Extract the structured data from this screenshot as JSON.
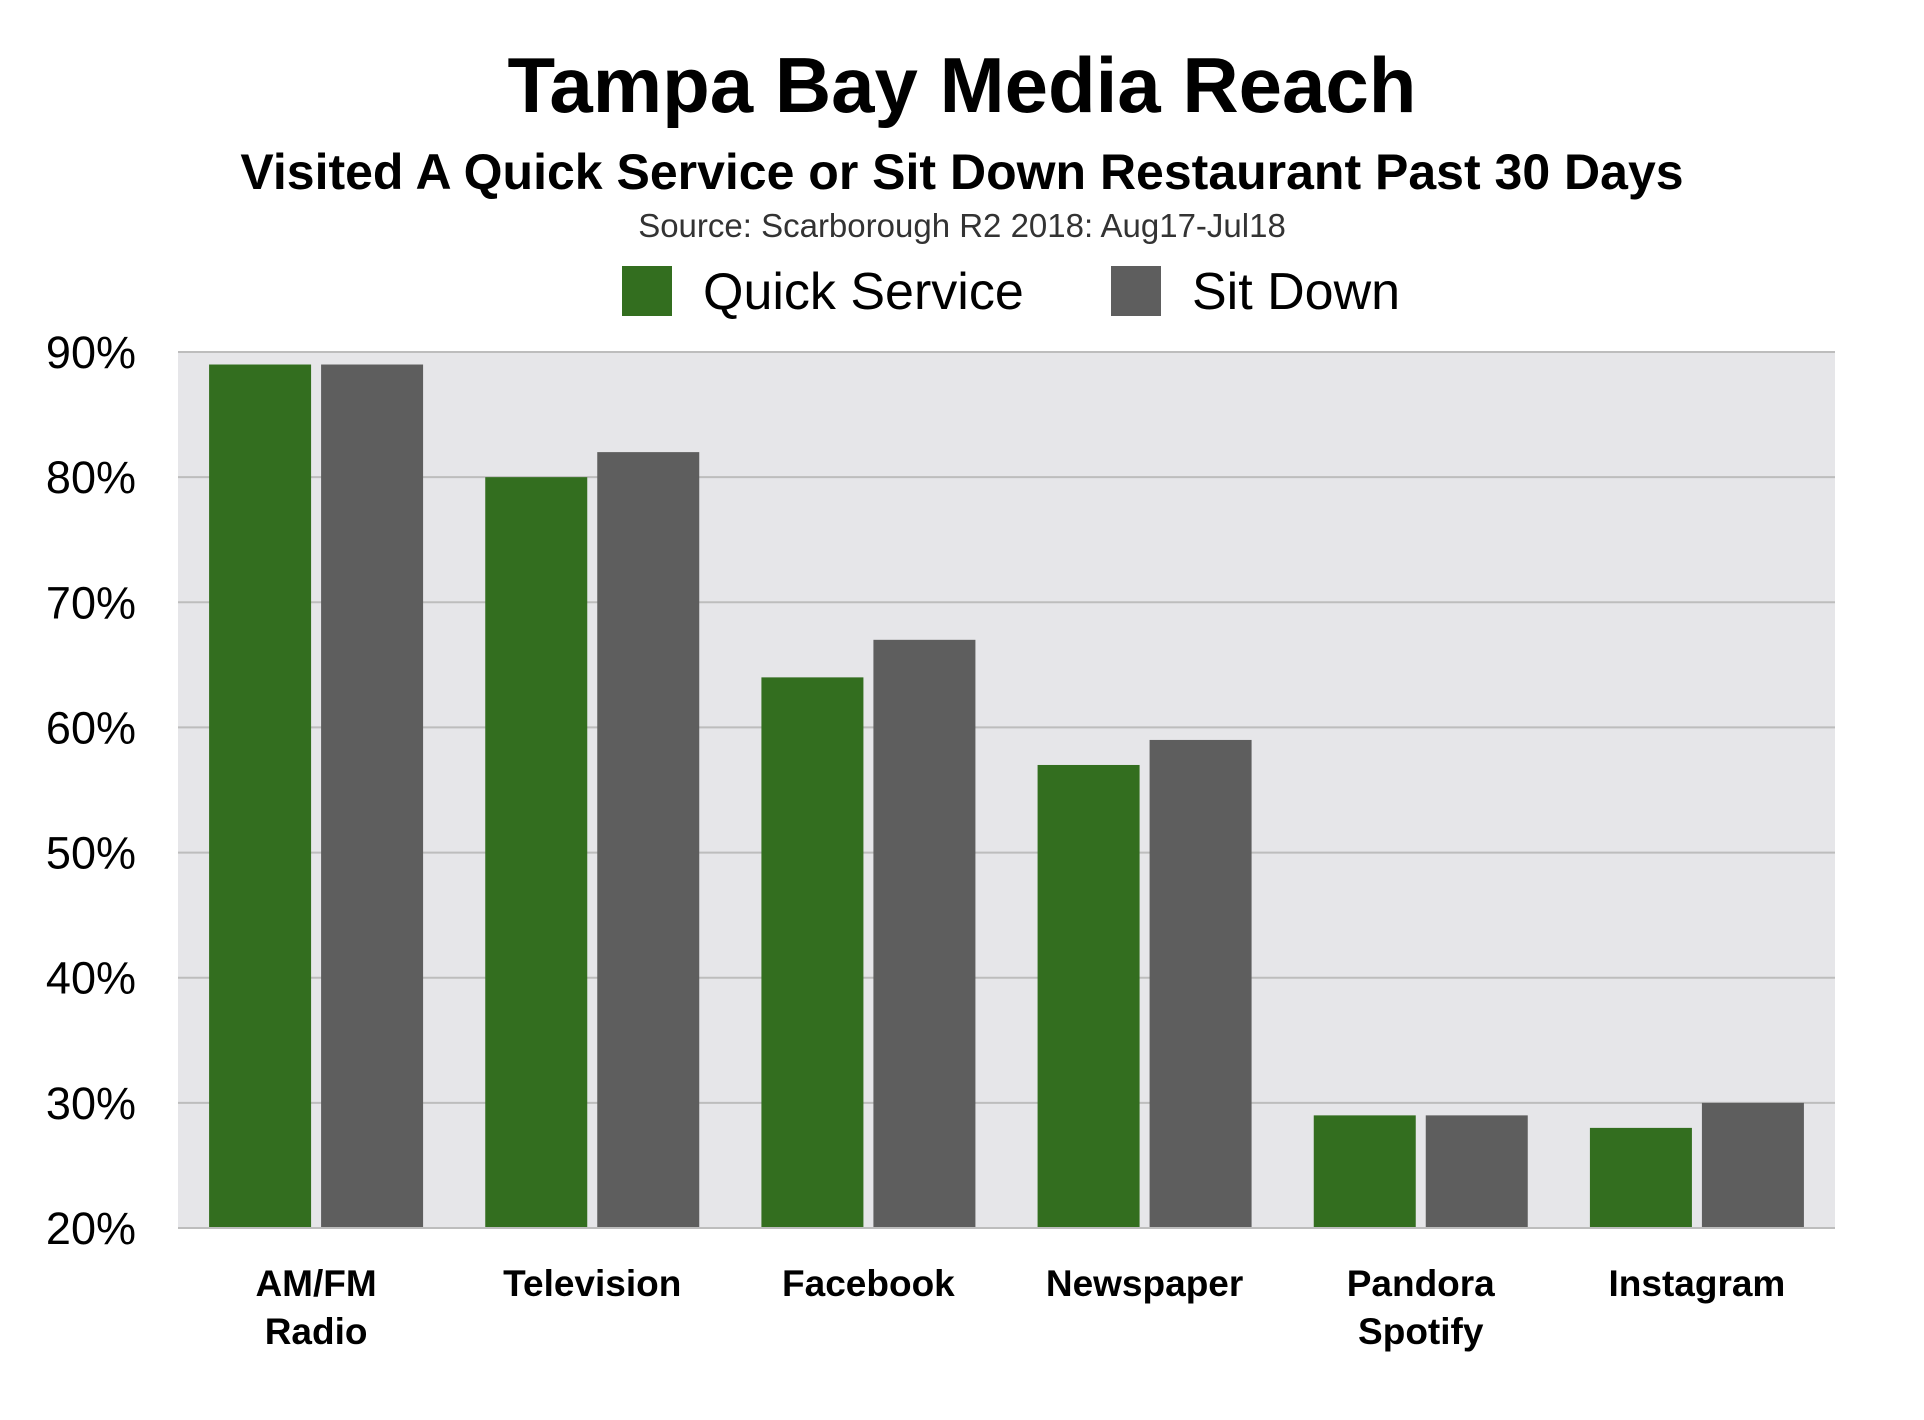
{
  "header": {
    "title": "Tampa Bay Media Reach",
    "subtitle": "Visited A Quick Service or Sit Down Restaurant Past 30 Days",
    "source": "Source: Scarborough R2 2018: Aug17-Jul18"
  },
  "colors": {
    "quick_service": "#336e1f",
    "sit_down": "#5e5e5e",
    "plot_background": "#e6e6e9",
    "gridline": "#bdbdbd"
  },
  "chart_data": {
    "type": "bar",
    "title": "Tampa Bay Media Reach",
    "subtitle": "Visited A Quick Service or Sit Down Restaurant Past 30 Days",
    "categories": [
      [
        "AM/FM",
        "Radio"
      ],
      [
        "Television"
      ],
      [
        "Facebook"
      ],
      [
        "Newspaper"
      ],
      [
        "Pandora",
        "Spotify"
      ],
      [
        "Instagram"
      ]
    ],
    "series": [
      {
        "name": "Quick Service",
        "color": "#336e1f",
        "values": [
          89,
          80,
          64,
          57,
          29,
          28
        ]
      },
      {
        "name": "Sit Down",
        "color": "#5e5e5e",
        "values": [
          89,
          82,
          67,
          59,
          29,
          30
        ]
      }
    ],
    "ylim": [
      20,
      90
    ],
    "yticks": [
      20,
      30,
      40,
      50,
      60,
      70,
      80,
      90
    ],
    "ytick_labels": [
      "20%",
      "30%",
      "40%",
      "50%",
      "60%",
      "70%",
      "80%",
      "90%"
    ],
    "xlabel": "",
    "ylabel": "",
    "grid": true,
    "legend": "top-center"
  }
}
